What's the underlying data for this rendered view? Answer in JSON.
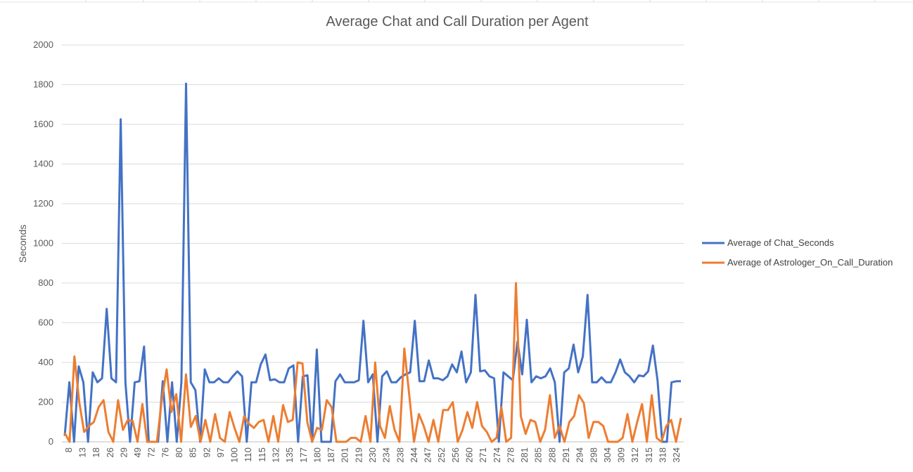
{
  "chart_data": {
    "type": "line",
    "title": "Average Chat and Call Duration per Agent",
    "xlabel": "",
    "ylabel": "Seconds",
    "ylim": [
      0,
      2000
    ],
    "y_ticks": [
      "0",
      "200",
      "400",
      "600",
      "800",
      "1000",
      "1200",
      "1400",
      "1600",
      "1800",
      "2000"
    ],
    "x_tick_labels": [
      "8",
      "13",
      "18",
      "26",
      "29",
      "49",
      "72",
      "76",
      "80",
      "85",
      "92",
      "97",
      "100",
      "110",
      "115",
      "132",
      "135",
      "177",
      "180",
      "187",
      "201",
      "219",
      "230",
      "234",
      "238",
      "244",
      "247",
      "252",
      "256",
      "260",
      "271",
      "274",
      "278",
      "281",
      "285",
      "288",
      "291",
      "294",
      "298",
      "304",
      "309",
      "312",
      "315",
      "318",
      "324"
    ],
    "grid": "horizontal",
    "legend_position": "right",
    "series": [
      {
        "name": "Average of Chat_Seconds",
        "color": "#4472C4",
        "values": [
          30,
          300,
          0,
          380,
          300,
          0,
          350,
          300,
          320,
          670,
          320,
          300,
          1625,
          300,
          0,
          300,
          305,
          480,
          0,
          0,
          0,
          305,
          0,
          300,
          0,
          300,
          1805,
          300,
          260,
          0,
          365,
          300,
          300,
          320,
          300,
          300,
          330,
          355,
          330,
          0,
          300,
          300,
          390,
          440,
          310,
          315,
          300,
          300,
          370,
          385,
          0,
          330,
          335,
          0,
          465,
          0,
          0,
          0,
          305,
          340,
          300,
          300,
          300,
          310,
          610,
          300,
          340,
          0,
          330,
          355,
          300,
          300,
          325,
          340,
          350,
          610,
          305,
          305,
          410,
          320,
          320,
          310,
          330,
          390,
          350,
          455,
          300,
          350,
          740,
          355,
          360,
          330,
          320,
          0,
          350,
          330,
          310,
          505,
          340,
          615,
          300,
          330,
          320,
          330,
          370,
          300,
          0,
          350,
          370,
          490,
          350,
          430,
          740,
          300,
          300,
          325,
          300,
          300,
          350,
          415,
          350,
          330,
          300,
          335,
          330,
          355,
          485,
          310,
          0,
          0,
          300,
          305,
          305
        ],
        "start_offset": 0
      },
      {
        "name": "Average of Astrologer_On_Call_Duration",
        "color": "#ED7D31",
        "values": [
          45,
          0,
          430,
          200,
          50,
          80,
          100,
          175,
          210,
          50,
          0,
          210,
          60,
          110,
          105,
          0,
          190,
          0,
          0,
          0,
          210,
          365,
          150,
          240,
          0,
          340,
          75,
          130,
          0,
          110,
          0,
          140,
          20,
          0,
          150,
          70,
          0,
          130,
          90,
          70,
          100,
          110,
          0,
          130,
          0,
          185,
          100,
          110,
          400,
          395,
          100,
          0,
          70,
          60,
          210,
          175,
          0,
          0,
          0,
          20,
          20,
          0,
          130,
          0,
          400,
          80,
          20,
          180,
          60,
          0,
          470,
          240,
          0,
          140,
          80,
          0,
          110,
          0,
          160,
          160,
          200,
          0,
          60,
          150,
          70,
          200,
          80,
          50,
          0,
          20,
          175,
          0,
          20,
          800,
          130,
          40,
          110,
          100,
          0,
          60,
          235,
          20,
          80,
          0,
          100,
          130,
          235,
          195,
          20,
          100,
          100,
          80,
          0,
          0,
          0,
          20,
          140,
          0,
          100,
          190,
          0,
          235,
          20,
          0,
          80,
          110,
          0,
          120
        ],
        "start_offset": 0
      }
    ]
  }
}
